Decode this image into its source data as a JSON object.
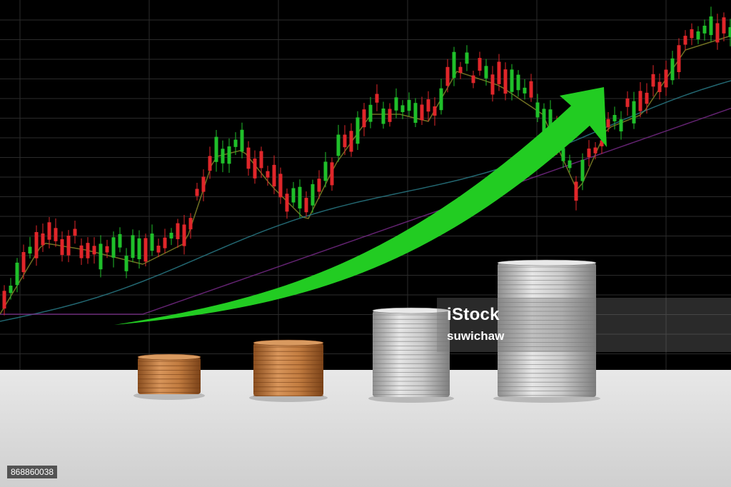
{
  "watermark": {
    "brand": "iStock",
    "credit": "suwichaw"
  },
  "image_id": "868860038",
  "colors": {
    "background": "#000000",
    "grid": "#2b2b2b",
    "candle_up": "#1fbf2a",
    "candle_down": "#e0262a",
    "arrow": "#22cc22",
    "table": "#dcdcdc",
    "copper": "#b87333",
    "silver": "#bdbdbd"
  },
  "icons": [
    "upward-trend-arrow-icon"
  ]
}
